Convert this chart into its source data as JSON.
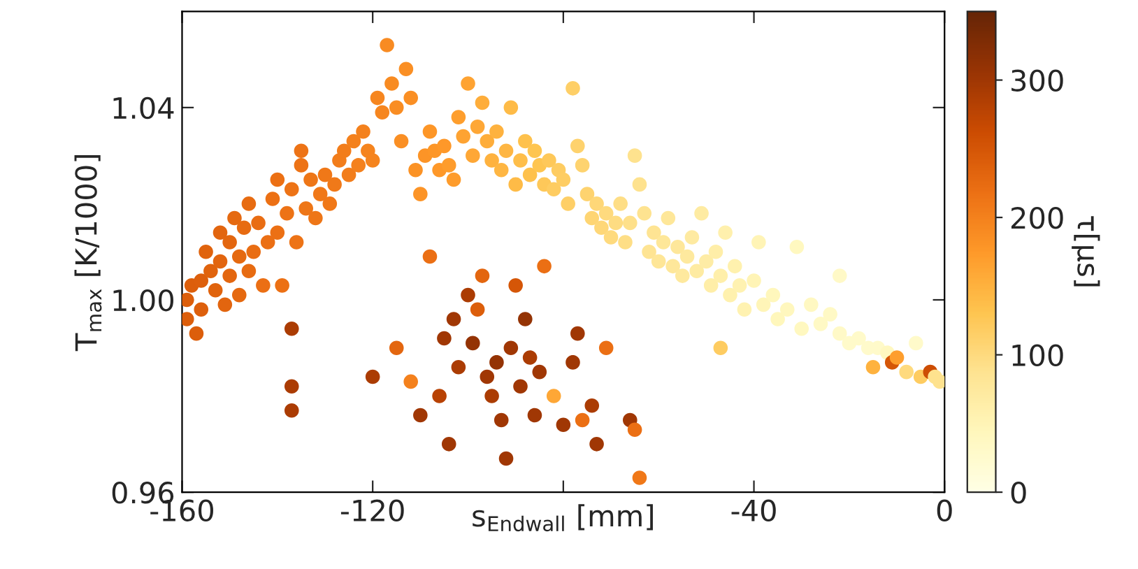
{
  "chart_data": {
    "type": "scatter",
    "xlabel": "s$_{Endwall}$ [mm]",
    "ylabel": "T$_{max}$ [K/1000]",
    "clabel": "τ[μs]",
    "xlim": [
      -160,
      0
    ],
    "xticks": [
      -160,
      -120,
      {
        "value": -80,
        "label": null
      },
      -40,
      0
    ],
    "ylim": [
      0.96,
      1.06
    ],
    "yticks": [
      {
        "value": 0.96,
        "label": "0.96"
      },
      {
        "value": 1.0,
        "label": "1.00"
      },
      {
        "value": 1.04,
        "label": "1.04"
      }
    ],
    "clim": [
      0,
      350
    ],
    "cticks": [
      0,
      100,
      200,
      300
    ],
    "grid": false,
    "legend": false,
    "marker": "circle",
    "series": [
      {
        "x": [
          -159,
          -159,
          -158,
          -157,
          -156,
          -156,
          -155,
          -154,
          -153,
          -152,
          -152,
          -151,
          -150,
          -150,
          -149,
          -148,
          -148,
          -147,
          -146,
          -146,
          -145,
          -144,
          -143,
          -142,
          -141,
          -140,
          -140,
          -139,
          -138,
          -137,
          -136,
          -135,
          -135,
          -134,
          -133,
          -132,
          -131,
          -130,
          -129,
          -128,
          -127,
          -126,
          -125,
          -124,
          -123,
          -122,
          -121,
          -120,
          -119,
          -118,
          -117,
          -116,
          -115,
          -114,
          -113,
          -112,
          -111,
          -110,
          -109,
          -108,
          -107,
          -106,
          -105,
          -104,
          -103,
          -102,
          -101,
          -100,
          -99,
          -98,
          -97,
          -96,
          -95,
          -94,
          -93,
          -92,
          -91,
          -90,
          -89,
          -88,
          -87,
          -86,
          -85,
          -84,
          -83,
          -82,
          -81,
          -80,
          -79,
          -78,
          -77,
          -76,
          -75,
          -74,
          -73,
          -72,
          -71,
          -70,
          -69,
          -68,
          -67,
          -66,
          -65,
          -64,
          -63,
          -62,
          -61,
          -60,
          -59,
          -58,
          -57,
          -56,
          -55,
          -54,
          -53,
          -52,
          -51,
          -50,
          -49,
          -48,
          -47,
          -46,
          -45,
          -44,
          -43,
          -42,
          -40,
          -39,
          -38,
          -36,
          -35,
          -33,
          -31,
          -30,
          -28,
          -26,
          -24,
          -22,
          -22,
          -20,
          -18,
          -16,
          -15,
          -14,
          -12,
          -11,
          -10,
          -8,
          -6,
          -5,
          -3,
          -2,
          -1,
          -137,
          -137,
          -137,
          -120,
          -115,
          -112,
          -110,
          -108,
          -106,
          -105,
          -104,
          -103,
          -102,
          -100,
          -99,
          -98,
          -97,
          -96,
          -95,
          -94,
          -93,
          -92,
          -91,
          -90,
          -89,
          -88,
          -87,
          -86,
          -85,
          -84,
          -82,
          -80,
          -78,
          -77,
          -76,
          -74,
          -73,
          -71,
          -66,
          -65,
          -64,
          -47
        ],
        "values": [
          1.0,
          0.996,
          1.003,
          0.993,
          0.998,
          1.004,
          1.01,
          1.006,
          1.002,
          1.008,
          1.014,
          0.999,
          1.005,
          1.012,
          1.017,
          1.001,
          1.009,
          1.015,
          1.006,
          1.02,
          1.01,
          1.016,
          1.003,
          1.012,
          1.021,
          1.025,
          1.014,
          1.003,
          1.018,
          1.023,
          1.012,
          1.031,
          1.028,
          1.019,
          1.025,
          1.017,
          1.022,
          1.026,
          1.02,
          1.024,
          1.029,
          1.031,
          1.026,
          1.033,
          1.028,
          1.035,
          1.031,
          1.029,
          1.042,
          1.039,
          1.053,
          1.045,
          1.04,
          1.033,
          1.048,
          1.042,
          1.027,
          1.022,
          1.03,
          1.035,
          1.031,
          1.027,
          1.032,
          1.028,
          1.025,
          1.038,
          1.034,
          1.045,
          1.03,
          1.036,
          1.041,
          1.033,
          1.029,
          1.035,
          1.027,
          1.031,
          1.04,
          1.024,
          1.029,
          1.033,
          1.026,
          1.031,
          1.028,
          1.024,
          1.029,
          1.023,
          1.027,
          1.025,
          1.02,
          1.044,
          1.032,
          1.028,
          1.022,
          1.017,
          1.02,
          1.015,
          1.018,
          1.013,
          1.016,
          1.02,
          1.012,
          1.016,
          1.03,
          1.024,
          1.018,
          1.01,
          1.014,
          1.008,
          1.012,
          1.017,
          1.007,
          1.011,
          1.005,
          1.009,
          1.013,
          1.006,
          1.018,
          1.008,
          1.003,
          1.01,
          1.005,
          1.014,
          1.001,
          1.007,
          1.003,
          0.998,
          1.004,
          1.012,
          0.999,
          1.001,
          0.996,
          0.998,
          1.011,
          0.994,
          0.999,
          0.995,
          0.997,
          0.993,
          1.005,
          0.991,
          0.992,
          0.99,
          0.986,
          0.99,
          0.989,
          0.987,
          0.988,
          0.985,
          0.991,
          0.984,
          0.985,
          0.984,
          0.983,
          0.994,
          0.982,
          0.977,
          0.984,
          0.99,
          0.983,
          0.976,
          1.009,
          0.98,
          0.992,
          0.97,
          0.996,
          0.986,
          1.001,
          0.991,
          0.998,
          1.005,
          0.984,
          0.98,
          0.987,
          0.975,
          0.967,
          0.99,
          1.003,
          0.982,
          0.996,
          0.988,
          0.976,
          0.985,
          1.007,
          0.98,
          0.974,
          0.987,
          0.993,
          0.975,
          0.978,
          0.97,
          0.99,
          0.975,
          0.973,
          0.963,
          0.99
        ],
        "cvalues": [
          240,
          240,
          240,
          240,
          238,
          238,
          235,
          235,
          235,
          232,
          232,
          232,
          230,
          230,
          228,
          228,
          228,
          225,
          225,
          225,
          222,
          222,
          220,
          220,
          218,
          218,
          218,
          218,
          215,
          215,
          215,
          215,
          215,
          212,
          212,
          212,
          210,
          210,
          210,
          208,
          205,
          205,
          205,
          200,
          200,
          200,
          198,
          198,
          195,
          195,
          190,
          190,
          188,
          185,
          185,
          185,
          182,
          180,
          180,
          178,
          178,
          175,
          175,
          172,
          172,
          170,
          165,
          165,
          160,
          160,
          155,
          155,
          150,
          150,
          145,
          145,
          140,
          140,
          138,
          135,
          135,
          130,
          130,
          125,
          125,
          120,
          120,
          118,
          115,
          115,
          112,
          110,
          110,
          108,
          105,
          105,
          100,
          100,
          98,
          95,
          95,
          92,
          90,
          90,
          88,
          85,
          85,
          82,
          80,
          80,
          78,
          78,
          75,
          75,
          72,
          70,
          70,
          68,
          65,
          65,
          62,
          60,
          58,
          58,
          55,
          55,
          50,
          50,
          48,
          45,
          45,
          42,
          40,
          40,
          38,
          35,
          35,
          32,
          32,
          30,
          30,
          28,
          150,
          30,
          40,
          250,
          170,
          100,
          30,
          120,
          260,
          90,
          90,
          290,
          290,
          290,
          290,
          230,
          200,
          300,
          220,
          280,
          300,
          300,
          300,
          290,
          290,
          310,
          240,
          230,
          300,
          290,
          310,
          300,
          300,
          300,
          250,
          300,
          310,
          290,
          300,
          300,
          220,
          160,
          300,
          300,
          300,
          220,
          290,
          300,
          220,
          300,
          220,
          210,
          120
        ]
      }
    ]
  }
}
